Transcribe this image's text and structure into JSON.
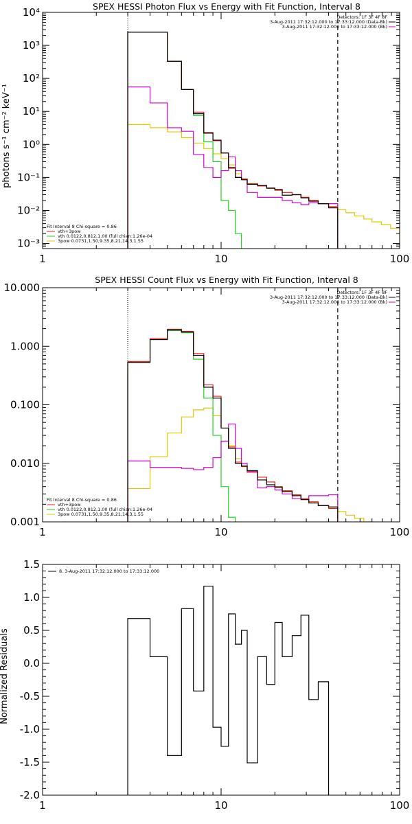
{
  "chart_data": [
    {
      "type": "line",
      "title": "SPEX HESSI Photon Flux vs Energy with Fit Function, Interval 8",
      "xlabel": "",
      "ylabel": "photons s⁻¹ cm⁻² keV⁻¹",
      "xscale": "log",
      "yscale": "log",
      "xlim": [
        1,
        100
      ],
      "ylim": [
        0.0007,
        10000
      ],
      "x_ticks": [
        1,
        10,
        100
      ],
      "x_tick_labels": [
        "1",
        "10",
        "100"
      ],
      "y_ticks": [
        0.001,
        0.01,
        0.1,
        1,
        10,
        100,
        1000,
        10000
      ],
      "y_tick_labels": [
        "10⁻³",
        "10⁻²",
        "10⁻¹",
        "10⁰",
        "10¹",
        "10²",
        "10³",
        "10⁴"
      ],
      "legend_top": {
        "placement": "top-right",
        "lines": [
          {
            "text": "Detectors: 1F 3F 4F 8F",
            "color": ""
          },
          {
            "text": "3-Aug-2011 17:32:12.000 to 17:33:12.000 (Data-Bk)",
            "color": "#000000"
          },
          {
            "text": "3-Aug-2011 17:32:12.000 to 17:33:12.000 (Bk)",
            "color": "#d400d4"
          }
        ]
      },
      "legend_bottom": {
        "placement": "bottom-left",
        "header": "Fit Interval 8   Chi-square = 0.86",
        "entries": [
          {
            "text": "vth+3pow",
            "color": "#e8201c"
          },
          {
            "text": "vth 0.0122,0.812,1.00  (full chian:1.26e-04",
            "color": "#22d022"
          },
          {
            "text": "3pow 0.0731,1.50,9.35,8.21,14.3,1.55",
            "color": "#e0c800"
          }
        ]
      },
      "markers": {
        "dotted_x": 3.0,
        "dashed_x": 45.0
      },
      "edges": [
        3.0,
        4.0,
        5.0,
        6.0,
        7.0,
        8.0,
        9.0,
        10.0,
        11.0,
        12.0,
        13.0,
        14.0,
        16.0,
        18.0,
        20.0,
        22.0,
        25.0,
        28.0,
        31.0,
        35.0,
        40.0,
        45.0,
        50.0,
        56.0,
        63.0,
        70.0,
        79.0,
        89.0,
        100.0
      ],
      "series": [
        {
          "name": "Data-Bk",
          "color": "#000000",
          "style": "step",
          "values": [
            2500,
            2500,
            330,
            46,
            8.5,
            2.2,
            1.35,
            0.55,
            0.2,
            0.1,
            0.085,
            0.062,
            0.057,
            0.047,
            0.043,
            0.029,
            0.03,
            0.024,
            0.019,
            0.016,
            0.012
          ]
        },
        {
          "name": "Bk",
          "color": "#d400d4",
          "style": "step",
          "values": [
            55,
            18,
            3.2,
            2.5,
            0.5,
            0.2,
            0.1,
            0.16,
            0.42,
            0.16,
            0.09,
            0.035,
            0.025,
            0.025,
            0.025,
            0.02,
            0.017,
            0.015,
            0.017,
            0.016,
            0.016
          ]
        },
        {
          "name": "vth+3pow",
          "color": "#e8201c",
          "style": "step",
          "values": [
            2500,
            2500,
            330,
            46,
            9.5,
            2.3,
            1.3,
            0.55,
            0.19,
            0.1,
            0.09,
            0.064,
            0.055,
            0.048,
            0.041,
            0.035,
            0.03,
            0.025,
            0.02,
            0.016,
            0.013
          ]
        },
        {
          "name": "vth",
          "color": "#22d022",
          "style": "step",
          "values": [
            2500,
            2500,
            330,
            46,
            7.5,
            1.2,
            0.3,
            0.02,
            0.01,
            0.002,
            0.0005
          ]
        },
        {
          "name": "3pow",
          "color": "#e0c800",
          "style": "step",
          "values": [
            4.0,
            3.2,
            2.4,
            1.6,
            1.1,
            0.75,
            0.52,
            0.37,
            0.24,
            0.13,
            0.09,
            0.065,
            0.055,
            0.047,
            0.041,
            0.035,
            0.03,
            0.025,
            0.02,
            0.016,
            0.013,
            0.0105,
            0.0085,
            0.0068,
            0.0055,
            0.0045,
            0.0037,
            0.0029
          ]
        }
      ]
    },
    {
      "type": "line",
      "title": "SPEX HESSI Count Flux vs Energy with Fit Function, Interval 8",
      "xlabel": "",
      "ylabel": "",
      "xscale": "log",
      "yscale": "log",
      "xlim": [
        1,
        100
      ],
      "ylim": [
        0.001,
        10
      ],
      "x_ticks": [
        1,
        10,
        100
      ],
      "x_tick_labels": [
        "1",
        "10",
        "100"
      ],
      "y_ticks": [
        0.001,
        0.01,
        0.1,
        1,
        10
      ],
      "y_tick_labels": [
        "0.001",
        "0.010",
        "0.100",
        "1.000",
        "10.000"
      ],
      "legend_top": {
        "placement": "top-right",
        "lines": [
          {
            "text": "Detectors: 1F 3F 4F 8F",
            "color": ""
          },
          {
            "text": "3-Aug-2011 17:32:12.000 to 17:33:12.000 (Data-Bk)",
            "color": "#000000"
          },
          {
            "text": "3-Aug-2011 17:32:12.000 to 17:33:12.000 (Bk)",
            "color": "#d400d4"
          }
        ]
      },
      "legend_bottom": {
        "placement": "bottom-left",
        "header": "Fit Interval 8   Chi-square = 0.86",
        "entries": [
          {
            "text": "vth+3pow",
            "color": "#e8201c"
          },
          {
            "text": "vth 0.0122,0.812,1.00  (full chian:1.26e-04",
            "color": "#22d022"
          },
          {
            "text": "3pow 0.0731,1.50,9.35,8.21,14.3,1.55",
            "color": "#e0c800"
          }
        ]
      },
      "markers": {
        "dotted_x": 3.0,
        "dashed_x": 45.0
      },
      "edges": [
        3.0,
        4.0,
        5.0,
        6.0,
        7.0,
        8.0,
        9.0,
        10.0,
        11.0,
        12.0,
        13.0,
        14.0,
        16.0,
        18.0,
        20.0,
        22.0,
        25.0,
        28.0,
        31.0,
        35.0,
        40.0,
        45.0,
        50.0,
        56.0,
        63.0,
        70.0,
        79.0,
        89.0,
        100.0
      ],
      "series": [
        {
          "name": "Data-Bk",
          "color": "#000000",
          "style": "step",
          "values": [
            0.53,
            1.3,
            1.9,
            1.75,
            0.7,
            0.2,
            0.13,
            0.04,
            0.018,
            0.01,
            0.009,
            0.0075,
            0.0052,
            0.0043,
            0.0039,
            0.0033,
            0.0028,
            0.0024,
            0.0021,
            0.0019,
            0.0018
          ]
        },
        {
          "name": "Bk",
          "color": "#d400d4",
          "style": "step",
          "values": [
            0.011,
            0.0085,
            0.0085,
            0.0082,
            0.0078,
            0.0085,
            0.0125,
            0.024,
            0.047,
            0.018,
            0.01,
            0.0073,
            0.0038,
            0.004,
            0.0035,
            0.003,
            0.0025,
            0.0025,
            0.0028,
            0.0028,
            0.0029
          ]
        },
        {
          "name": "vth+3pow",
          "color": "#e8201c",
          "style": "step",
          "values": [
            0.55,
            1.35,
            1.95,
            1.8,
            0.75,
            0.22,
            0.14,
            0.04,
            0.019,
            0.0105,
            0.0088,
            0.007,
            0.0058,
            0.0048,
            0.004,
            0.0034,
            0.0029,
            0.0025,
            0.0022,
            0.0019,
            0.0017
          ]
        },
        {
          "name": "vth",
          "color": "#22d022",
          "style": "step",
          "values": [
            0.53,
            1.3,
            1.85,
            1.7,
            0.6,
            0.13,
            0.03,
            0.004,
            0.0012,
            0.0003
          ]
        },
        {
          "name": "3pow",
          "color": "#e0c800",
          "style": "step",
          "values": [
            0.0037,
            0.013,
            0.033,
            0.062,
            0.082,
            0.088,
            0.065,
            0.04,
            0.02,
            0.012,
            0.0088,
            0.007,
            0.0058,
            0.0048,
            0.004,
            0.0034,
            0.0029,
            0.0025,
            0.0022,
            0.0019,
            0.0017,
            0.0015,
            0.0013,
            0.00115,
            0.001,
            0.0009,
            0.0008,
            0.0007
          ]
        }
      ]
    },
    {
      "type": "line",
      "title": "",
      "xlabel": "",
      "ylabel": "Normalized Residuals",
      "xscale": "log",
      "yscale": "linear",
      "xlim": [
        1,
        100
      ],
      "ylim": [
        -2.0,
        1.5
      ],
      "x_ticks": [
        1,
        10,
        100
      ],
      "x_tick_labels": [
        "1",
        "10",
        "100"
      ],
      "y_ticks": [
        -2.0,
        -1.5,
        -1.0,
        -0.5,
        0.0,
        0.5,
        1.0,
        1.5
      ],
      "y_tick_labels": [
        "-2.0",
        "-1.5",
        "-1.0",
        "-0.5",
        "0.0",
        "0.5",
        "1.0",
        "1.5"
      ],
      "legend_top": {
        "placement": "top-left",
        "lines": [
          {
            "text": "8.  3-Aug-2011 17:32:12.000 to 17:33:12.000",
            "color": "#000000"
          }
        ]
      },
      "edges": [
        3.0,
        4.0,
        5.0,
        6.0,
        7.0,
        8.0,
        9.0,
        10.0,
        11.0,
        12.0,
        13.0,
        14.0,
        16.0,
        18.0,
        20.0,
        22.0,
        25.0,
        28.0,
        31.0,
        35.0,
        40.0,
        45.0
      ],
      "series": [
        {
          "name": "",
          "color": "#000000",
          "style": "step",
          "values": [
            0.68,
            0.1,
            -1.4,
            0.83,
            -0.42,
            1.17,
            -0.97,
            -1.26,
            0.75,
            0.29,
            0.5,
            -1.51,
            0.1,
            -0.32,
            0.62,
            0.1,
            0.42,
            0.73,
            -0.55,
            -0.28
          ]
        }
      ]
    }
  ]
}
